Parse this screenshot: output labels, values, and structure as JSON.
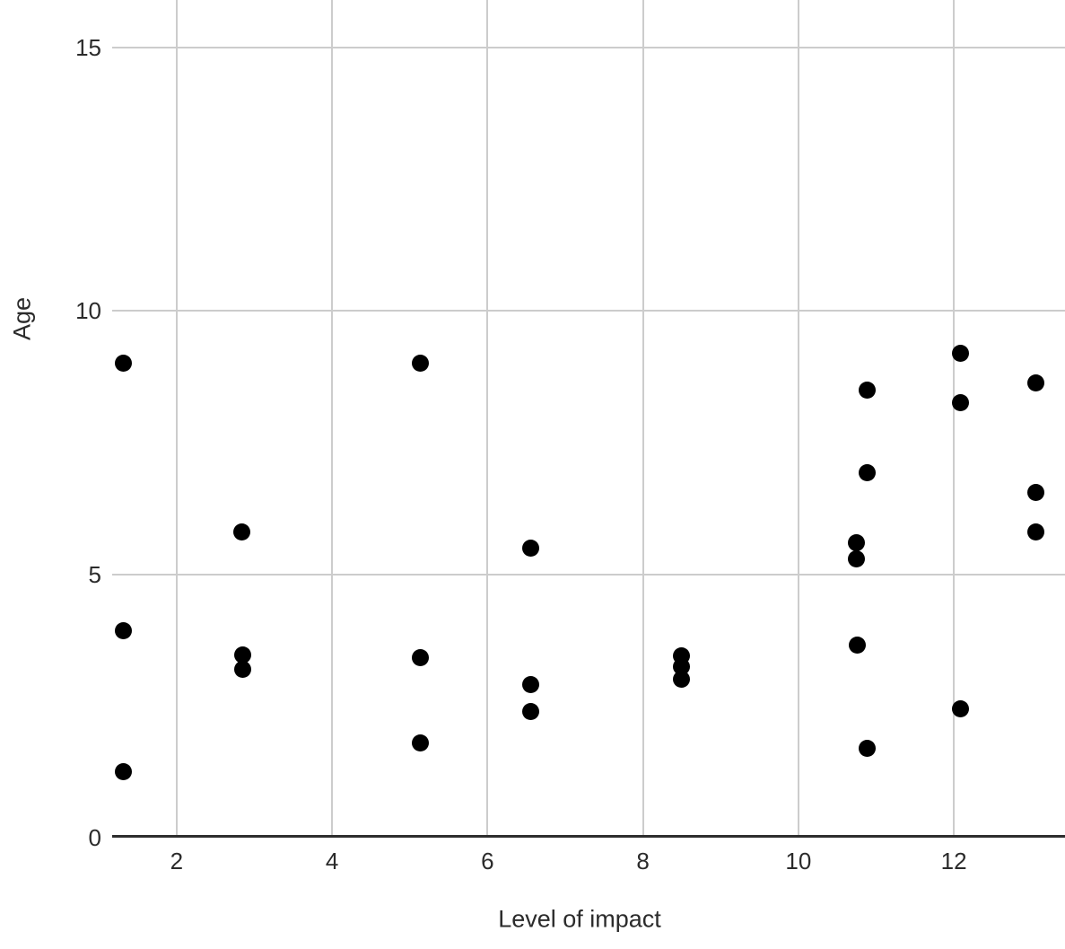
{
  "chart_data": {
    "type": "scatter",
    "title": "",
    "xlabel": "Level of impact",
    "ylabel": "Age",
    "x_ticks": [
      2,
      4,
      6,
      8,
      10,
      12
    ],
    "y_ticks": [
      0,
      5,
      10,
      15
    ],
    "xlim": [
      1.17,
      13.43
    ],
    "ylim": [
      0,
      15.9
    ],
    "grid": true,
    "legend": "none",
    "points": [
      {
        "x": 1.32,
        "y": 9.0
      },
      {
        "x": 1.32,
        "y": 3.92
      },
      {
        "x": 1.32,
        "y": 1.25
      },
      {
        "x": 2.84,
        "y": 5.8
      },
      {
        "x": 2.85,
        "y": 3.46
      },
      {
        "x": 2.85,
        "y": 3.2
      },
      {
        "x": 5.13,
        "y": 9.0
      },
      {
        "x": 5.14,
        "y": 3.41
      },
      {
        "x": 5.14,
        "y": 1.79
      },
      {
        "x": 6.56,
        "y": 5.49
      },
      {
        "x": 6.56,
        "y": 2.9
      },
      {
        "x": 6.56,
        "y": 2.39
      },
      {
        "x": 8.49,
        "y": 3.45
      },
      {
        "x": 8.49,
        "y": 3.24
      },
      {
        "x": 8.49,
        "y": 3.01
      },
      {
        "x": 10.88,
        "y": 8.5
      },
      {
        "x": 10.88,
        "y": 6.92
      },
      {
        "x": 10.75,
        "y": 5.59
      },
      {
        "x": 10.75,
        "y": 5.3
      },
      {
        "x": 10.76,
        "y": 3.65
      },
      {
        "x": 10.88,
        "y": 1.69
      },
      {
        "x": 12.09,
        "y": 9.2
      },
      {
        "x": 12.09,
        "y": 8.25
      },
      {
        "x": 12.09,
        "y": 2.45
      },
      {
        "x": 13.05,
        "y": 8.63
      },
      {
        "x": 13.05,
        "y": 6.56
      },
      {
        "x": 13.05,
        "y": 5.8
      }
    ]
  },
  "colors": {
    "dot": "#000000",
    "gridline": "#cccccc",
    "axis_line": "#2d2d2d",
    "text": "#2b2b2b",
    "background": "#ffffff"
  }
}
